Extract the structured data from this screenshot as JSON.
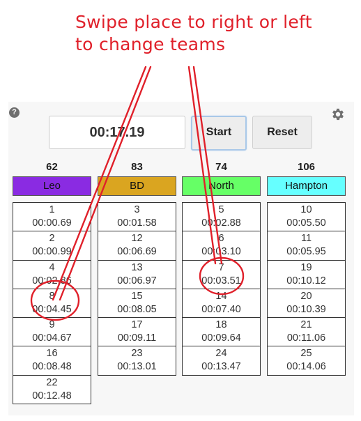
{
  "annotation": {
    "line1": "Swipe place to right or left",
    "line2": "to change teams"
  },
  "toolbar": {
    "timer": "00:17.19",
    "start_label": "Start",
    "reset_label": "Reset",
    "help_symbol": "?"
  },
  "teams": [
    {
      "name": "Leo",
      "score": "62",
      "color": "#8a2be2",
      "places": [
        {
          "place": "1",
          "time": "00:00.69"
        },
        {
          "place": "2",
          "time": "00:00.99"
        },
        {
          "place": "4",
          "time": "00:02.86"
        },
        {
          "place": "8",
          "time": "00:04.45"
        },
        {
          "place": "9",
          "time": "00:04.67"
        },
        {
          "place": "16",
          "time": "00:08.48"
        },
        {
          "place": "22",
          "time": "00:12.48"
        }
      ]
    },
    {
      "name": "BD",
      "score": "83",
      "color": "#daa520",
      "places": [
        {
          "place": "3",
          "time": "00:01.58"
        },
        {
          "place": "12",
          "time": "00:06.69"
        },
        {
          "place": "13",
          "time": "00:06.97"
        },
        {
          "place": "15",
          "time": "00:08.05"
        },
        {
          "place": "17",
          "time": "00:09.11"
        },
        {
          "place": "23",
          "time": "00:13.01"
        }
      ]
    },
    {
      "name": "North",
      "score": "74",
      "color": "#66ff66",
      "places": [
        {
          "place": "5",
          "time": "00:02.88"
        },
        {
          "place": "6",
          "time": "00:03.10"
        },
        {
          "place": "7",
          "time": "00:03.51"
        },
        {
          "place": "14",
          "time": "00:07.40"
        },
        {
          "place": "18",
          "time": "00:09.64"
        },
        {
          "place": "24",
          "time": "00:13.47"
        }
      ]
    },
    {
      "name": "Hampton",
      "score": "106",
      "color": "#66ffff",
      "places": [
        {
          "place": "10",
          "time": "00:05.50"
        },
        {
          "place": "11",
          "time": "00:05.95"
        },
        {
          "place": "19",
          "time": "00:10.12"
        },
        {
          "place": "20",
          "time": "00:10.39"
        },
        {
          "place": "21",
          "time": "00:11.06"
        },
        {
          "place": "25",
          "time": "00:14.06"
        }
      ]
    }
  ]
}
